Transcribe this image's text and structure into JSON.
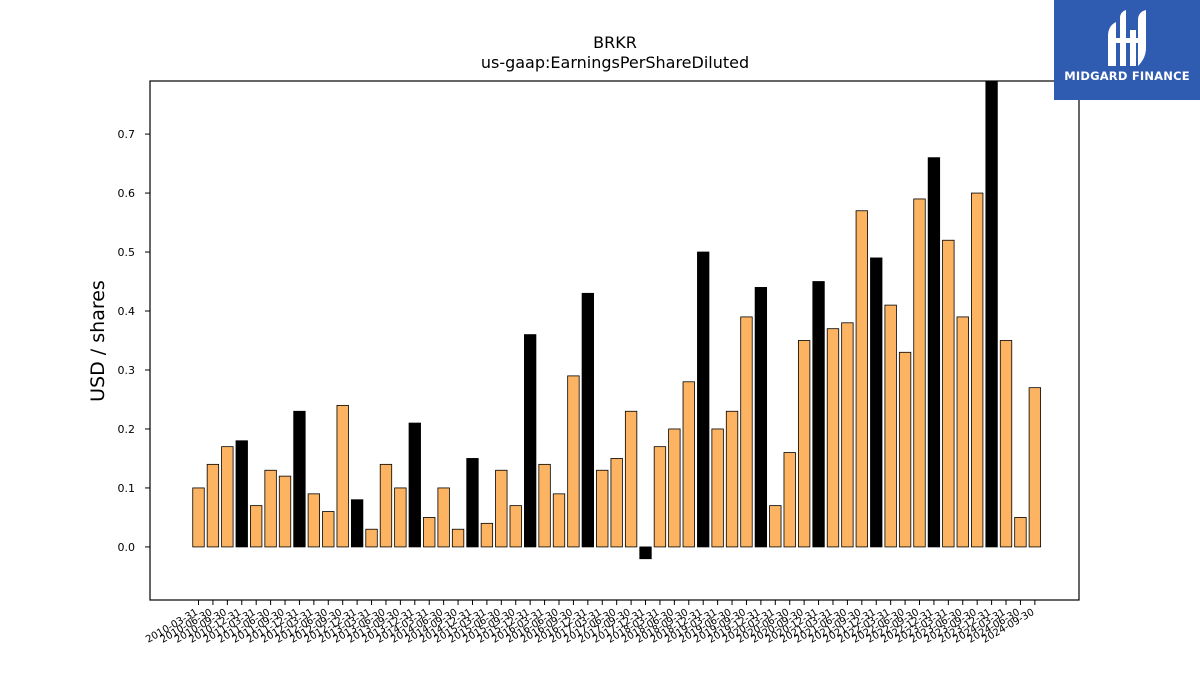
{
  "brand": {
    "name": "MIDGARD FINANCE",
    "bg_color": "#2f5bb0"
  },
  "chart_data": {
    "type": "bar",
    "title": "BRKR",
    "subtitle": "us-gaap:EarningsPerShareDiluted",
    "xlabel": "",
    "ylabel": "USD / shares",
    "ylim": [
      -0.09,
      0.79
    ],
    "yticks": [
      0.0,
      0.1,
      0.2,
      0.3,
      0.4,
      0.5,
      0.6,
      0.7
    ],
    "grid": false,
    "colors": {
      "quarter": "#fdb462",
      "annual": "#000000",
      "edge": "#000000"
    },
    "categories": [
      "2010-03-31",
      "2010-06-30",
      "2010-09-30",
      "2010-12-31",
      "2011-03-31",
      "2011-06-30",
      "2011-09-30",
      "2011-12-31",
      "2012-03-31",
      "2012-06-30",
      "2012-09-30",
      "2012-12-31",
      "2013-03-31",
      "2013-06-30",
      "2013-09-30",
      "2013-12-31",
      "2014-03-31",
      "2014-06-30",
      "2014-09-30",
      "2014-12-31",
      "2015-03-31",
      "2015-06-30",
      "2015-09-30",
      "2015-12-31",
      "2016-03-31",
      "2016-06-30",
      "2016-09-30",
      "2016-12-31",
      "2017-03-31",
      "2017-06-30",
      "2017-09-30",
      "2017-12-31",
      "2018-03-31",
      "2018-06-30",
      "2018-09-30",
      "2018-12-31",
      "2019-03-31",
      "2019-06-30",
      "2019-09-30",
      "2019-12-31",
      "2020-03-31",
      "2020-06-30",
      "2020-09-30",
      "2020-12-31",
      "2021-03-31",
      "2021-06-30",
      "2021-09-30",
      "2021-12-31",
      "2022-03-31",
      "2022-06-30",
      "2022-09-30",
      "2022-12-31",
      "2023-03-31",
      "2023-06-30",
      "2023-09-30",
      "2023-12-31",
      "2024-03-31",
      "2024-06-30",
      "2024-09-30"
    ],
    "values": [
      0.1,
      0.14,
      0.17,
      0.18,
      0.07,
      0.13,
      0.12,
      0.23,
      0.09,
      0.06,
      0.24,
      0.08,
      0.03,
      0.14,
      0.1,
      0.21,
      0.05,
      0.1,
      0.03,
      0.15,
      0.04,
      0.13,
      0.07,
      0.36,
      0.14,
      0.09,
      0.29,
      0.43,
      0.13,
      0.15,
      0.23,
      -0.02,
      0.17,
      0.2,
      0.28,
      0.5,
      0.2,
      0.23,
      0.39,
      0.44,
      0.07,
      0.16,
      0.35,
      0.45,
      0.37,
      0.38,
      0.57,
      0.49,
      0.41,
      0.33,
      0.59,
      0.66,
      0.52,
      0.39,
      0.6,
      0.79,
      0.35,
      0.05,
      0.27
    ],
    "annual": [
      false,
      false,
      false,
      true,
      false,
      false,
      false,
      true,
      false,
      false,
      false,
      true,
      false,
      false,
      false,
      true,
      false,
      false,
      false,
      true,
      false,
      false,
      false,
      true,
      false,
      false,
      false,
      true,
      false,
      false,
      false,
      true,
      false,
      false,
      false,
      true,
      false,
      false,
      false,
      true,
      false,
      false,
      false,
      true,
      false,
      false,
      false,
      true,
      false,
      false,
      false,
      true,
      false,
      false,
      false,
      true,
      false,
      false,
      false
    ]
  }
}
